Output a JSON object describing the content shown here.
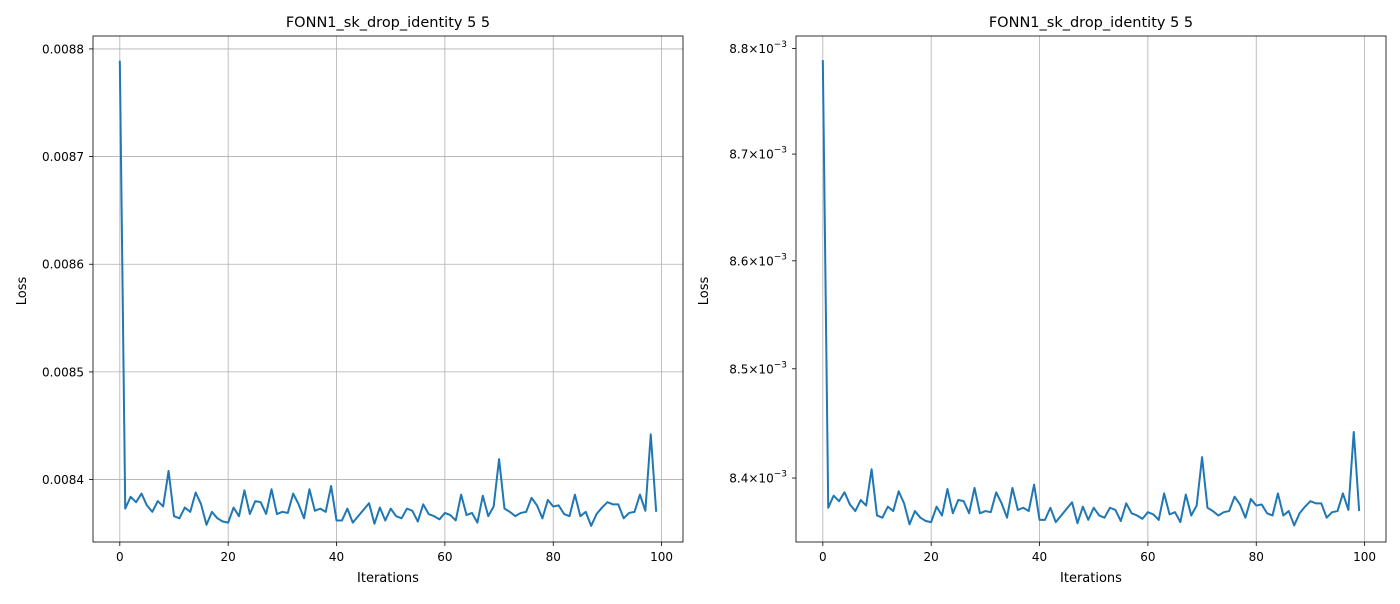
{
  "chart_data": [
    {
      "type": "line",
      "title": "FONN1_sk_drop_identity 5 5",
      "xlabel": "Iterations",
      "ylabel": "Loss",
      "xlim": [
        -4.95,
        103.95
      ],
      "ylim": [
        0.008342,
        0.008812
      ],
      "xticks": [
        0,
        20,
        40,
        60,
        80,
        100
      ],
      "xtick_labels": [
        "0",
        "20",
        "40",
        "60",
        "80",
        "100"
      ],
      "yticks": [
        0.0084,
        0.0085,
        0.0086,
        0.0087,
        0.0088
      ],
      "ytick_labels": [
        "0.0084",
        "0.0085",
        "0.0086",
        "0.0087",
        "0.0088"
      ],
      "y_scale": "linear",
      "grid": "both",
      "series": [
        {
          "color": "#1f77b4",
          "x": [
            0,
            1,
            2,
            3,
            4,
            5,
            6,
            7,
            8,
            9,
            10,
            11,
            12,
            13,
            14,
            15,
            16,
            17,
            18,
            19,
            20,
            21,
            22,
            23,
            24,
            25,
            26,
            27,
            28,
            29,
            30,
            31,
            32,
            33,
            34,
            35,
            36,
            37,
            38,
            39,
            40,
            41,
            42,
            43,
            44,
            45,
            46,
            47,
            48,
            49,
            50,
            51,
            52,
            53,
            54,
            55,
            56,
            57,
            58,
            59,
            60,
            61,
            62,
            63,
            64,
            65,
            66,
            67,
            68,
            69,
            70,
            71,
            72,
            73,
            74,
            75,
            76,
            77,
            78,
            79,
            80,
            81,
            82,
            83,
            84,
            85,
            86,
            87,
            88,
            89,
            90,
            91,
            92,
            93,
            94,
            95,
            96,
            97,
            98,
            99
          ],
          "y": [
            0.008789,
            0.008373,
            0.008384,
            0.008379,
            0.008387,
            0.008376,
            0.00837,
            0.00838,
            0.008375,
            0.008408,
            0.008366,
            0.008364,
            0.008374,
            0.00837,
            0.008388,
            0.008377,
            0.008358,
            0.00837,
            0.008364,
            0.008361,
            0.00836,
            0.008374,
            0.008366,
            0.00839,
            0.008368,
            0.00838,
            0.008379,
            0.008368,
            0.008391,
            0.008368,
            0.00837,
            0.008369,
            0.008387,
            0.008377,
            0.008364,
            0.008391,
            0.008371,
            0.008373,
            0.00837,
            0.008394,
            0.008362,
            0.008362,
            0.008373,
            0.00836,
            0.008366,
            0.008372,
            0.008378,
            0.008359,
            0.008374,
            0.008362,
            0.008373,
            0.008366,
            0.008364,
            0.008373,
            0.008371,
            0.008361,
            0.008377,
            0.008368,
            0.008366,
            0.008363,
            0.008369,
            0.008367,
            0.008362,
            0.008386,
            0.008367,
            0.008369,
            0.00836,
            0.008385,
            0.008366,
            0.008375,
            0.008419,
            0.008373,
            0.00837,
            0.008366,
            0.008369,
            0.00837,
            0.008383,
            0.008376,
            0.008364,
            0.008381,
            0.008375,
            0.008376,
            0.008368,
            0.008366,
            0.008386,
            0.008366,
            0.00837,
            0.008357,
            0.008368,
            0.008374,
            0.008379,
            0.008377,
            0.008377,
            0.008364,
            0.008369,
            0.00837,
            0.008386,
            0.008371,
            0.008442,
            0.00837
          ]
        }
      ]
    },
    {
      "type": "line",
      "title": "FONN1_sk_drop_identity 5 5",
      "xlabel": "Iterations",
      "ylabel": "Loss",
      "xlim": [
        -4.95,
        103.95
      ],
      "ylim": [
        0.008342,
        0.008812
      ],
      "xticks": [
        0,
        20,
        40,
        60,
        80,
        100
      ],
      "xtick_labels": [
        "0",
        "20",
        "40",
        "60",
        "80",
        "100"
      ],
      "yticks": [
        0.0084,
        0.0085,
        0.0086,
        0.0087,
        0.0088
      ],
      "ytick_labels": [
        {
          "mant": "8.4",
          "exp": "−3"
        },
        {
          "mant": "8.5",
          "exp": "−3"
        },
        {
          "mant": "8.6",
          "exp": "−3"
        },
        {
          "mant": "8.7",
          "exp": "−3"
        },
        {
          "mant": "8.8",
          "exp": "−3"
        }
      ],
      "y_scale": "log",
      "grid": "x",
      "series_ref": 0
    }
  ]
}
